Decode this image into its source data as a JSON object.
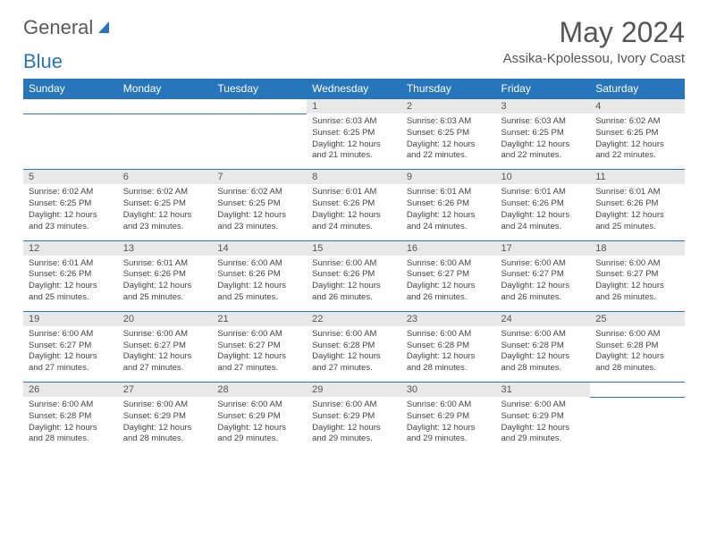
{
  "brand": {
    "part1": "General",
    "part2": "Blue"
  },
  "title": "May 2024",
  "location": "Assika-Kpolessou, Ivory Coast",
  "colors": {
    "accent": "#2776bb",
    "header_bg": "#2776bb",
    "daynum_bg": "#e8e8e8"
  },
  "dayNames": [
    "Sunday",
    "Monday",
    "Tuesday",
    "Wednesday",
    "Thursday",
    "Friday",
    "Saturday"
  ],
  "weeks": [
    [
      null,
      null,
      null,
      {
        "n": "1",
        "sunrise": "6:03 AM",
        "sunset": "6:25 PM",
        "daylight": "12 hours and 21 minutes."
      },
      {
        "n": "2",
        "sunrise": "6:03 AM",
        "sunset": "6:25 PM",
        "daylight": "12 hours and 22 minutes."
      },
      {
        "n": "3",
        "sunrise": "6:03 AM",
        "sunset": "6:25 PM",
        "daylight": "12 hours and 22 minutes."
      },
      {
        "n": "4",
        "sunrise": "6:02 AM",
        "sunset": "6:25 PM",
        "daylight": "12 hours and 22 minutes."
      }
    ],
    [
      {
        "n": "5",
        "sunrise": "6:02 AM",
        "sunset": "6:25 PM",
        "daylight": "12 hours and 23 minutes."
      },
      {
        "n": "6",
        "sunrise": "6:02 AM",
        "sunset": "6:25 PM",
        "daylight": "12 hours and 23 minutes."
      },
      {
        "n": "7",
        "sunrise": "6:02 AM",
        "sunset": "6:25 PM",
        "daylight": "12 hours and 23 minutes."
      },
      {
        "n": "8",
        "sunrise": "6:01 AM",
        "sunset": "6:26 PM",
        "daylight": "12 hours and 24 minutes."
      },
      {
        "n": "9",
        "sunrise": "6:01 AM",
        "sunset": "6:26 PM",
        "daylight": "12 hours and 24 minutes."
      },
      {
        "n": "10",
        "sunrise": "6:01 AM",
        "sunset": "6:26 PM",
        "daylight": "12 hours and 24 minutes."
      },
      {
        "n": "11",
        "sunrise": "6:01 AM",
        "sunset": "6:26 PM",
        "daylight": "12 hours and 25 minutes."
      }
    ],
    [
      {
        "n": "12",
        "sunrise": "6:01 AM",
        "sunset": "6:26 PM",
        "daylight": "12 hours and 25 minutes."
      },
      {
        "n": "13",
        "sunrise": "6:01 AM",
        "sunset": "6:26 PM",
        "daylight": "12 hours and 25 minutes."
      },
      {
        "n": "14",
        "sunrise": "6:00 AM",
        "sunset": "6:26 PM",
        "daylight": "12 hours and 25 minutes."
      },
      {
        "n": "15",
        "sunrise": "6:00 AM",
        "sunset": "6:26 PM",
        "daylight": "12 hours and 26 minutes."
      },
      {
        "n": "16",
        "sunrise": "6:00 AM",
        "sunset": "6:27 PM",
        "daylight": "12 hours and 26 minutes."
      },
      {
        "n": "17",
        "sunrise": "6:00 AM",
        "sunset": "6:27 PM",
        "daylight": "12 hours and 26 minutes."
      },
      {
        "n": "18",
        "sunrise": "6:00 AM",
        "sunset": "6:27 PM",
        "daylight": "12 hours and 26 minutes."
      }
    ],
    [
      {
        "n": "19",
        "sunrise": "6:00 AM",
        "sunset": "6:27 PM",
        "daylight": "12 hours and 27 minutes."
      },
      {
        "n": "20",
        "sunrise": "6:00 AM",
        "sunset": "6:27 PM",
        "daylight": "12 hours and 27 minutes."
      },
      {
        "n": "21",
        "sunrise": "6:00 AM",
        "sunset": "6:27 PM",
        "daylight": "12 hours and 27 minutes."
      },
      {
        "n": "22",
        "sunrise": "6:00 AM",
        "sunset": "6:28 PM",
        "daylight": "12 hours and 27 minutes."
      },
      {
        "n": "23",
        "sunrise": "6:00 AM",
        "sunset": "6:28 PM",
        "daylight": "12 hours and 28 minutes."
      },
      {
        "n": "24",
        "sunrise": "6:00 AM",
        "sunset": "6:28 PM",
        "daylight": "12 hours and 28 minutes."
      },
      {
        "n": "25",
        "sunrise": "6:00 AM",
        "sunset": "6:28 PM",
        "daylight": "12 hours and 28 minutes."
      }
    ],
    [
      {
        "n": "26",
        "sunrise": "6:00 AM",
        "sunset": "6:28 PM",
        "daylight": "12 hours and 28 minutes."
      },
      {
        "n": "27",
        "sunrise": "6:00 AM",
        "sunset": "6:29 PM",
        "daylight": "12 hours and 28 minutes."
      },
      {
        "n": "28",
        "sunrise": "6:00 AM",
        "sunset": "6:29 PM",
        "daylight": "12 hours and 29 minutes."
      },
      {
        "n": "29",
        "sunrise": "6:00 AM",
        "sunset": "6:29 PM",
        "daylight": "12 hours and 29 minutes."
      },
      {
        "n": "30",
        "sunrise": "6:00 AM",
        "sunset": "6:29 PM",
        "daylight": "12 hours and 29 minutes."
      },
      {
        "n": "31",
        "sunrise": "6:00 AM",
        "sunset": "6:29 PM",
        "daylight": "12 hours and 29 minutes."
      },
      null
    ]
  ],
  "labels": {
    "sunrise": "Sunrise: ",
    "sunset": "Sunset: ",
    "daylight": "Daylight: "
  }
}
